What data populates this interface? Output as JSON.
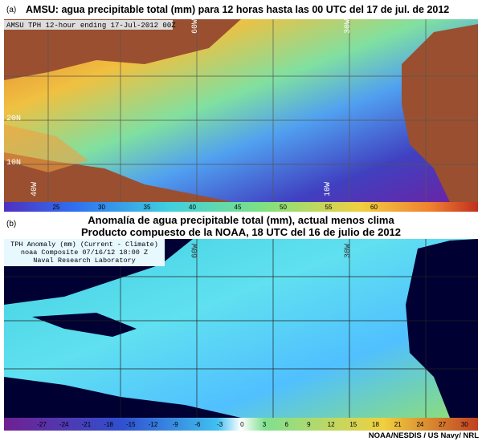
{
  "panel_a": {
    "label": "(a)",
    "title": "AMSU: agua precipitable total (mm) para 12 horas hasta las 00 UTC del 17 de jul. de 2012",
    "map_caption": "AMSU TPH 12-hour ending 17-Jul-2012 00Z",
    "lat_labels": [
      "20N",
      "10N"
    ],
    "lon_labels": [
      "60W",
      "30W",
      "40W",
      "10W"
    ],
    "colorbar_ticks": [
      "25",
      "30",
      "35",
      "40",
      "45",
      "50",
      "55",
      "60"
    ]
  },
  "panel_b": {
    "label": "(b)",
    "title_lines": [
      "Anomalía de agua precipitable total (mm), actual menos clima",
      "Producto compuesto de la NOAA, 18 UTC del 16 de julio de 2012"
    ],
    "map_caption_lines": [
      "TPH Anomaly (mm) (Current - Climate)",
      "noaa Composite 07/16/12 18:00 Z",
      "Naval Research Laboratory"
    ],
    "lon_labels": [
      "60W",
      "30W"
    ],
    "colorbar_ticks": [
      "-27",
      "-24",
      "-21",
      "-18",
      "-15",
      "-12",
      "-9",
      "-6",
      "-3",
      "0",
      "3",
      "6",
      "9",
      "12",
      "15",
      "18",
      "21",
      "24",
      "27",
      "30"
    ]
  },
  "credit": "NOAA/NESDIS / US Navy/ NRL"
}
